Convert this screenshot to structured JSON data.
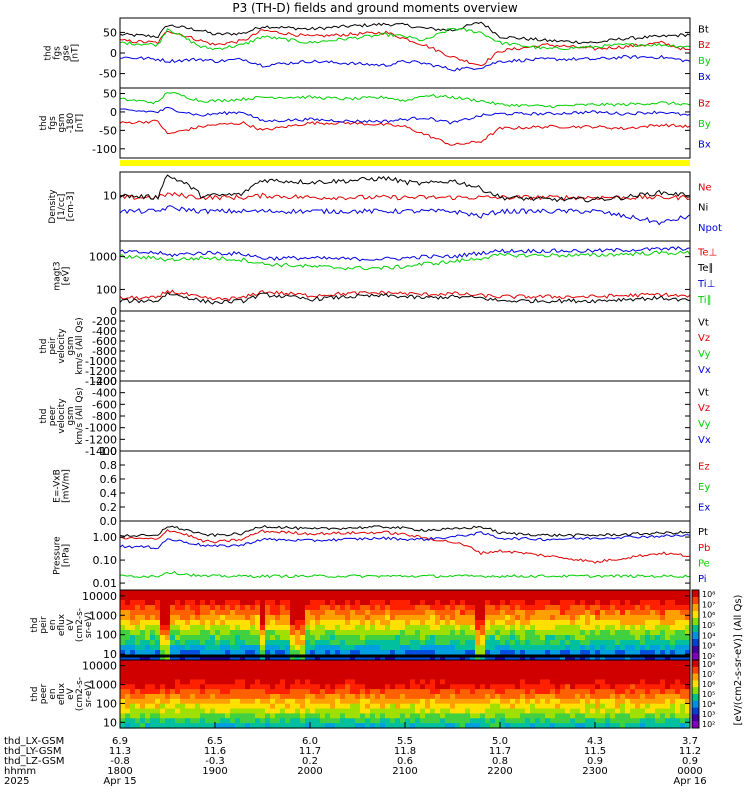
{
  "title": "P3 (TH-D) fields and ground moments overview",
  "colors": {
    "black": "#000000",
    "red": "#e00000",
    "green": "#00d000",
    "blue": "#0000e0",
    "yellow": "#ffff00"
  },
  "panels": [
    {
      "ylabel": [
        "thd",
        "fgs",
        "gse",
        "[nT]"
      ],
      "ticks": [
        {
          "v": 50,
          "t": "50"
        },
        {
          "v": 0,
          "t": "0"
        },
        {
          "v": -50,
          "t": "-50"
        }
      ],
      "legend": [
        {
          "t": "Bt",
          "c": "black"
        },
        {
          "t": "Bz",
          "c": "red"
        },
        {
          "t": "By",
          "c": "green"
        },
        {
          "t": "Bx",
          "c": "blue"
        }
      ]
    },
    {
      "ylabel": [
        "thd",
        "fgs",
        "gsm",
        "-180",
        "[nT]"
      ],
      "ticks": [
        {
          "v": 50,
          "t": "50"
        },
        {
          "v": 0,
          "t": "0"
        },
        {
          "v": -50,
          "t": "-50"
        },
        {
          "v": -100,
          "t": "-100"
        }
      ],
      "legend": [
        {
          "t": "Bz",
          "c": "red"
        },
        {
          "t": "By",
          "c": "green"
        },
        {
          "t": "Bx",
          "c": "blue"
        }
      ]
    },
    {
      "ylabel": [
        "Density",
        "[1/cc]",
        "[cm-3]"
      ],
      "ticks": [
        {
          "v": 10,
          "t": "10"
        }
      ],
      "legend": [
        {
          "t": "Ne",
          "c": "red"
        },
        {
          "t": "Ni",
          "c": "black"
        },
        {
          "t": "Npot",
          "c": "blue"
        }
      ]
    },
    {
      "ylabel": [
        "magt3",
        "[eV]"
      ],
      "ticks": [
        {
          "v": 1000,
          "t": "1000"
        },
        {
          "v": 100,
          "t": "100"
        }
      ],
      "legend": [
        {
          "t": "Te⊥",
          "c": "red"
        },
        {
          "t": "Te∥",
          "c": "black"
        },
        {
          "t": "Ti⊥",
          "c": "blue"
        },
        {
          "t": "Ti∥",
          "c": "green"
        }
      ]
    },
    {
      "ylabel": [
        "thd",
        "peir",
        "velocity",
        "gsm",
        "km/s (All Qs)"
      ],
      "ticks": [
        {
          "v": 0,
          "t": "0"
        },
        {
          "v": -200,
          "t": "-200"
        },
        {
          "v": -400,
          "t": "-400"
        },
        {
          "v": -600,
          "t": "-600"
        },
        {
          "v": -800,
          "t": "-800"
        },
        {
          "v": -1000,
          "t": "-1000"
        },
        {
          "v": -1200,
          "t": "-1200"
        },
        {
          "v": -1400,
          "t": "-1400"
        }
      ],
      "legend": [
        {
          "t": "Vt",
          "c": "black"
        },
        {
          "t": "Vz",
          "c": "red"
        },
        {
          "t": "Vy",
          "c": "green"
        },
        {
          "t": "Vx",
          "c": "blue"
        }
      ]
    },
    {
      "ylabel": [
        "thd",
        "peer",
        "velocity",
        "gsm",
        "km/s (All Qs)"
      ],
      "ticks": [
        {
          "v": -200,
          "t": "-200"
        },
        {
          "v": -400,
          "t": "-400"
        },
        {
          "v": -600,
          "t": "-600"
        },
        {
          "v": -800,
          "t": "-800"
        },
        {
          "v": -1000,
          "t": "-1000"
        },
        {
          "v": -1200,
          "t": "-1200"
        },
        {
          "v": -1400,
          "t": "-1400"
        }
      ],
      "legend": [
        {
          "t": "Vt",
          "c": "black"
        },
        {
          "t": "Vz",
          "c": "red"
        },
        {
          "t": "Vy",
          "c": "green"
        },
        {
          "t": "Vx",
          "c": "blue"
        }
      ]
    },
    {
      "ylabel": [
        "E=-VxB",
        "[mV/m]"
      ],
      "ticks": [
        {
          "v": 1.0,
          "t": "1.0"
        },
        {
          "v": 0.8,
          "t": "0.8"
        },
        {
          "v": 0.6,
          "t": "0.6"
        },
        {
          "v": 0.4,
          "t": "0.4"
        },
        {
          "v": 0.2,
          "t": "0.2"
        },
        {
          "v": 0.0,
          "t": "0.0"
        }
      ],
      "legend": [
        {
          "t": "Ez",
          "c": "red"
        },
        {
          "t": "Ey",
          "c": "green"
        },
        {
          "t": "Ex",
          "c": "blue"
        }
      ]
    },
    {
      "ylabel": [
        "Pressure",
        "[nPa]"
      ],
      "ticks": [
        {
          "v": 1.0,
          "t": "1.00"
        },
        {
          "v": 0.1,
          "t": "0.10"
        },
        {
          "v": 0.01,
          "t": "0.01"
        }
      ],
      "legend": [
        {
          "t": "Pt",
          "c": "black"
        },
        {
          "t": "Pb",
          "c": "red"
        },
        {
          "t": "Pe",
          "c": "green"
        },
        {
          "t": "Pi",
          "c": "blue"
        }
      ]
    },
    {
      "ylabel": [
        "thd",
        "peir",
        "en",
        "eflux",
        "eV",
        "(cm2-s-",
        "sr-eV)"
      ],
      "ticks": [
        {
          "v": 10000,
          "t": "10000"
        },
        {
          "v": 1000,
          "t": "1000"
        },
        {
          "v": 100,
          "t": "100"
        },
        {
          "v": 10,
          "t": "10"
        }
      ]
    },
    {
      "ylabel": [
        "thd",
        "peer",
        "en",
        "eflux",
        "eV",
        "(cm2-s-",
        "sr-eV)"
      ],
      "ticks": [
        {
          "v": 10000,
          "t": "10000"
        },
        {
          "v": 1000,
          "t": "1000"
        },
        {
          "v": 100,
          "t": "100"
        },
        {
          "v": 10,
          "t": "10"
        }
      ]
    }
  ],
  "colorbar": {
    "label": "[eV/(cm2-s-sr-eV)] (All Qs)",
    "ticks": [
      "10⁸",
      "10⁷",
      "10⁶",
      "10⁵",
      "10⁴",
      "10³",
      "10²"
    ]
  },
  "xaxis": {
    "row_labels": [
      "thd_LX-GSM",
      "thd_LY-GSM",
      "thd_LZ-GSM",
      "hhmm",
      "2025"
    ],
    "columns": [
      [
        "6.9",
        "11.3",
        "-0.8",
        "1800",
        "Apr 15"
      ],
      [
        "6.5",
        "11.6",
        "-0.3",
        "1900",
        ""
      ],
      [
        "6.0",
        "11.7",
        "0.2",
        "2000",
        ""
      ],
      [
        "5.5",
        "11.8",
        "0.6",
        "2100",
        ""
      ],
      [
        "5.0",
        "11.7",
        "0.8",
        "2200",
        ""
      ],
      [
        "4.3",
        "11.5",
        "0.9",
        "2300",
        ""
      ],
      [
        "3.7",
        "11.2",
        "0.9",
        "0000",
        "Apr 16"
      ]
    ]
  },
  "chart_data": [
    {
      "type": "line",
      "panel": "fgs gse",
      "x_hours": [
        18.0,
        18.4,
        18.5,
        18.85,
        19.0,
        19.3,
        19.5,
        20.0,
        20.4,
        20.8,
        21.0,
        21.2,
        21.5,
        21.8,
        22.0,
        22.5,
        23.0,
        23.3,
        23.7,
        24.0
      ],
      "ylim": [
        -85,
        85
      ],
      "series": [
        {
          "name": "Bt",
          "color": "black",
          "values": [
            45,
            40,
            68,
            55,
            45,
            48,
            65,
            58,
            65,
            70,
            68,
            60,
            55,
            75,
            40,
            30,
            25,
            35,
            40,
            45
          ]
        },
        {
          "name": "Bz",
          "color": "red",
          "values": [
            30,
            25,
            55,
            30,
            20,
            30,
            55,
            40,
            45,
            50,
            35,
            20,
            -10,
            -30,
            5,
            20,
            10,
            15,
            25,
            5
          ]
        },
        {
          "name": "By",
          "color": "green",
          "values": [
            25,
            20,
            60,
            15,
            10,
            20,
            40,
            25,
            35,
            45,
            40,
            30,
            60,
            50,
            25,
            10,
            15,
            20,
            20,
            15
          ]
        },
        {
          "name": "Bx",
          "color": "blue",
          "values": [
            -10,
            -15,
            -20,
            -15,
            -20,
            -15,
            -30,
            -20,
            -25,
            -30,
            -20,
            -25,
            -40,
            -35,
            -20,
            -15,
            -15,
            -10,
            -10,
            -20
          ]
        }
      ]
    },
    {
      "type": "line",
      "panel": "fgs gsm-180",
      "x_hours": [
        18.0,
        18.4,
        18.5,
        18.85,
        19.0,
        19.3,
        19.5,
        20.0,
        20.4,
        20.8,
        21.0,
        21.2,
        21.5,
        21.8,
        22.0,
        22.5,
        23.0,
        23.3,
        23.7,
        24.0
      ],
      "ylim": [
        -125,
        65
      ],
      "series": [
        {
          "name": "Bz",
          "color": "red",
          "values": [
            -30,
            -25,
            -60,
            -40,
            -35,
            -30,
            -50,
            -30,
            -30,
            -35,
            -40,
            -60,
            -90,
            -80,
            -45,
            -40,
            -40,
            -45,
            -35,
            -40
          ]
        },
        {
          "name": "By",
          "color": "green",
          "values": [
            35,
            25,
            55,
            30,
            30,
            35,
            40,
            40,
            35,
            40,
            30,
            45,
            40,
            30,
            20,
            15,
            20,
            20,
            25,
            20
          ]
        },
        {
          "name": "Bx",
          "color": "blue",
          "values": [
            5,
            0,
            10,
            -10,
            -5,
            0,
            -25,
            -20,
            -25,
            -25,
            -20,
            -15,
            -30,
            -10,
            -5,
            -5,
            0,
            -5,
            0,
            -10
          ]
        }
      ]
    },
    {
      "type": "line",
      "panel": "Density",
      "x_hours": [
        18.0,
        18.4,
        18.5,
        18.85,
        19.0,
        19.3,
        19.5,
        20.0,
        20.4,
        20.8,
        21.0,
        21.2,
        21.5,
        21.8,
        22.0,
        22.5,
        23.0,
        23.3,
        23.7,
        24.0
      ],
      "ylog": true,
      "ylim": [
        0.7,
        40
      ],
      "series": [
        {
          "name": "Ne",
          "color": "red",
          "values": [
            9,
            9,
            11,
            9,
            9,
            9,
            10,
            9,
            9,
            9,
            9,
            9,
            9,
            9,
            9,
            9,
            9,
            9,
            9,
            9
          ]
        },
        {
          "name": "Ni",
          "color": "black",
          "values": [
            10,
            9,
            32,
            10,
            10,
            11,
            25,
            22,
            24,
            28,
            22,
            20,
            24,
            15,
            9,
            8,
            8,
            9,
            12,
            10
          ]
        },
        {
          "name": "Npot",
          "color": "blue",
          "values": [
            4,
            4,
            5,
            4,
            4,
            4,
            4,
            4,
            4,
            4,
            4,
            4,
            4,
            3,
            4,
            4,
            4,
            3,
            2,
            3
          ]
        }
      ]
    },
    {
      "type": "line",
      "panel": "magt3",
      "x_hours": [
        18.0,
        18.4,
        18.5,
        18.85,
        19.0,
        19.3,
        19.5,
        20.0,
        20.4,
        20.8,
        21.0,
        21.2,
        21.5,
        21.8,
        22.0,
        22.5,
        23.0,
        23.3,
        23.7,
        24.0
      ],
      "ylog": true,
      "ylim": [
        22,
        3000
      ],
      "series": [
        {
          "name": "Te⊥",
          "color": "red",
          "values": [
            55,
            55,
            90,
            55,
            50,
            55,
            85,
            65,
            75,
            80,
            75,
            70,
            75,
            65,
            60,
            60,
            60,
            65,
            70,
            60
          ]
        },
        {
          "name": "Te∥",
          "color": "black",
          "values": [
            45,
            45,
            75,
            45,
            40,
            45,
            70,
            50,
            60,
            65,
            60,
            55,
            60,
            55,
            45,
            45,
            45,
            50,
            55,
            45
          ]
        },
        {
          "name": "Ti⊥",
          "color": "blue",
          "values": [
            1400,
            1300,
            1100,
            1300,
            1300,
            1200,
            900,
            900,
            850,
            850,
            900,
            1000,
            1000,
            1300,
            1500,
            1500,
            1500,
            1600,
            1700,
            1800
          ]
        },
        {
          "name": "Ti∥",
          "color": "green",
          "values": [
            1000,
            900,
            800,
            900,
            900,
            800,
            600,
            500,
            450,
            450,
            500,
            600,
            700,
            900,
            1100,
            1100,
            1100,
            1200,
            1300,
            1300
          ]
        }
      ]
    },
    {
      "type": "line",
      "panel": "peir velocity gsm",
      "ylim": [
        -1400,
        0
      ],
      "series": []
    },
    {
      "type": "line",
      "panel": "peer velocity gsm",
      "ylim": [
        -1400,
        -200
      ],
      "series": []
    },
    {
      "type": "line",
      "panel": "E=-VxB",
      "ylim": [
        0,
        1
      ],
      "series": []
    },
    {
      "type": "line",
      "panel": "Pressure",
      "x_hours": [
        18.0,
        18.4,
        18.5,
        18.85,
        19.0,
        19.3,
        19.5,
        20.0,
        20.4,
        20.8,
        21.0,
        21.2,
        21.5,
        21.8,
        22.0,
        22.5,
        23.0,
        23.3,
        23.7,
        24.0
      ],
      "ylog": true,
      "ylim": [
        0.005,
        5
      ],
      "series": [
        {
          "name": "Pt",
          "color": "black",
          "values": [
            1.2,
            1.1,
            3.0,
            1.3,
            1.2,
            1.4,
            3.0,
            2.2,
            2.5,
            2.8,
            2.4,
            2.0,
            2.2,
            2.8,
            1.5,
            1.2,
            1.2,
            1.3,
            1.5,
            1.6
          ]
        },
        {
          "name": "Pb",
          "color": "red",
          "values": [
            0.9,
            0.8,
            2.0,
            0.7,
            0.6,
            0.8,
            1.8,
            1.4,
            1.5,
            1.6,
            1.3,
            0.9,
            0.6,
            0.2,
            0.25,
            0.15,
            0.08,
            0.12,
            0.2,
            0.15
          ]
        },
        {
          "name": "Pe",
          "color": "green",
          "values": [
            0.02,
            0.02,
            0.03,
            0.02,
            0.02,
            0.02,
            0.02,
            0.02,
            0.02,
            0.02,
            0.02,
            0.02,
            0.02,
            0.02,
            0.02,
            0.02,
            0.02,
            0.02,
            0.02,
            0.02
          ]
        },
        {
          "name": "Pi",
          "color": "blue",
          "values": [
            0.4,
            0.35,
            0.8,
            0.45,
            0.4,
            0.45,
            0.8,
            0.7,
            0.8,
            0.9,
            0.8,
            0.8,
            1.0,
            1.5,
            0.9,
            0.8,
            0.9,
            1.0,
            1.1,
            1.2
          ]
        }
      ]
    },
    {
      "type": "heatmap",
      "panel": "peir en eflux",
      "ylog": true,
      "ylim": [
        5,
        20000
      ]
    },
    {
      "type": "heatmap",
      "panel": "peer en eflux",
      "ylog": true,
      "ylim": [
        5,
        20000
      ]
    }
  ]
}
